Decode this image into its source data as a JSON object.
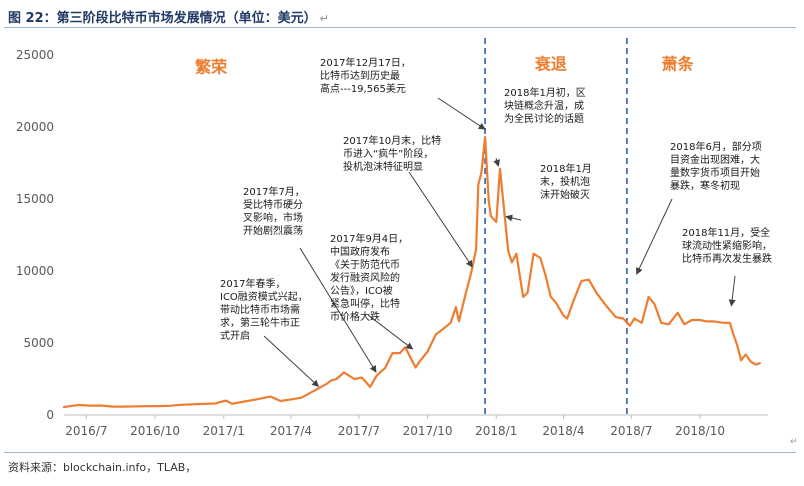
{
  "title": "图 22：第三阶段比特币市场发展情况（单位：美元）",
  "source": "资料来源：blockchain.info，TLAB，",
  "colors": {
    "line": "#ed7d31",
    "divider": "#2e5fa8",
    "phase": "#ed7d31",
    "arrow": "#404040"
  },
  "chart_data": {
    "type": "line",
    "title": "",
    "xlabel": "",
    "ylabel": "",
    "ylim": [
      0,
      25000
    ],
    "yticks": [
      0,
      5000,
      10000,
      15000,
      20000,
      25000
    ],
    "ytick_labels": [
      "0",
      "5000",
      "10000",
      "15000",
      "20000",
      "25000"
    ],
    "xlim": [
      "2016-06-01",
      "2018-12-31"
    ],
    "xticks": [
      "2016-07-01",
      "2016-10-01",
      "2017-01-01",
      "2017-04-01",
      "2017-07-01",
      "2017-10-01",
      "2018-01-01",
      "2018-04-01",
      "2018-07-01",
      "2018-10-01"
    ],
    "xtick_labels": [
      "2016/7",
      "2016/10",
      "2017/1",
      "2017/4",
      "2017/7",
      "2017/10",
      "2018/1",
      "2018/4",
      "2018/7",
      "2018/10"
    ],
    "grid": false,
    "dividers": [
      "2017-12-17",
      "2018-06-25"
    ],
    "phases": [
      {
        "label": "繁荣",
        "date": "2016-12-15",
        "value": 23800
      },
      {
        "label": "衰退",
        "date": "2018-03-15",
        "value": 24000
      },
      {
        "label": "萧条",
        "date": "2018-09-01",
        "value": 24000
      }
    ],
    "series": [
      {
        "x": [
          "2016-06-01",
          "2016-06-20",
          "2016-07-05",
          "2016-07-20",
          "2016-08-05",
          "2016-08-20",
          "2016-09-05",
          "2016-09-20",
          "2016-10-05",
          "2016-10-20",
          "2016-11-05",
          "2016-11-20",
          "2016-12-05",
          "2016-12-20",
          "2017-01-04",
          "2017-01-12",
          "2017-01-25",
          "2017-02-10",
          "2017-02-25",
          "2017-03-05",
          "2017-03-18",
          "2017-04-01",
          "2017-04-15",
          "2017-05-01",
          "2017-05-10",
          "2017-05-20",
          "2017-05-25",
          "2017-06-01",
          "2017-06-11",
          "2017-06-25",
          "2017-07-05",
          "2017-07-16",
          "2017-07-25",
          "2017-08-05",
          "2017-08-15",
          "2017-08-25",
          "2017-09-01",
          "2017-09-05",
          "2017-09-10",
          "2017-09-15",
          "2017-09-20",
          "2017-10-01",
          "2017-10-12",
          "2017-10-20",
          "2017-11-01",
          "2017-11-08",
          "2017-11-12",
          "2017-11-20",
          "2017-11-28",
          "2017-12-05",
          "2017-12-08",
          "2017-12-12",
          "2017-12-17",
          "2017-12-22",
          "2017-12-25",
          "2018-01-01",
          "2018-01-06",
          "2018-01-10",
          "2018-01-17",
          "2018-01-22",
          "2018-01-28",
          "2018-02-06",
          "2018-02-12",
          "2018-02-20",
          "2018-03-01",
          "2018-03-08",
          "2018-03-15",
          "2018-03-22",
          "2018-04-01",
          "2018-04-06",
          "2018-04-15",
          "2018-04-25",
          "2018-05-05",
          "2018-05-15",
          "2018-05-28",
          "2018-06-10",
          "2018-06-20",
          "2018-06-29",
          "2018-07-05",
          "2018-07-15",
          "2018-07-24",
          "2018-08-01",
          "2018-08-10",
          "2018-08-20",
          "2018-09-01",
          "2018-09-10",
          "2018-09-20",
          "2018-10-01",
          "2018-10-10",
          "2018-10-20",
          "2018-11-01",
          "2018-11-10",
          "2018-11-14",
          "2018-11-20",
          "2018-11-25",
          "2018-12-01",
          "2018-12-08",
          "2018-12-15",
          "2018-12-20"
        ],
        "values": [
          550,
          700,
          650,
          660,
          580,
          580,
          600,
          610,
          620,
          640,
          710,
          740,
          770,
          800,
          1000,
          780,
          900,
          1050,
          1200,
          1280,
          970,
          1080,
          1200,
          1650,
          1900,
          2200,
          2400,
          2500,
          2950,
          2500,
          2600,
          1950,
          2750,
          3250,
          4300,
          4300,
          4700,
          4300,
          3800,
          3300,
          3700,
          4400,
          5600,
          5900,
          6400,
          7500,
          6500,
          8200,
          9800,
          11500,
          16000,
          16800,
          19300,
          14800,
          13800,
          13400,
          17100,
          15000,
          11400,
          10600,
          11200,
          8200,
          8500,
          11200,
          10900,
          9700,
          8200,
          7800,
          6900,
          6700,
          8000,
          9300,
          9400,
          8500,
          7600,
          6800,
          6700,
          6200,
          6700,
          6400,
          8200,
          7700,
          6400,
          6300,
          7100,
          6300,
          6600,
          6600,
          6500,
          6500,
          6400,
          6400,
          5700,
          4800,
          3800,
          4200,
          3700,
          3500,
          3600
        ]
      }
    ],
    "annotations": [
      {
        "date": "2017-12-17",
        "value": 19565,
        "lines": [
          "2017年12月17日，",
          "比特币达到历史最",
          "高点---19,565美元"
        ]
      },
      {
        "date": "2018-01-04",
        "value": 17000,
        "lines": [
          "2018年1月初，区",
          "块链概念升温，成",
          "为全民讨论的话题"
        ]
      },
      {
        "date": "2017-11-30",
        "value": 10000,
        "lines": [
          "2017年10月末，比特",
          "币进入“疯牛”阶段，",
          "投机泡沫特征明显"
        ]
      },
      {
        "date": "2018-01-14",
        "value": 13500,
        "lines": [
          "2018年1月",
          "末，投机泡",
          "沫开始破灭"
        ]
      },
      {
        "date": "2017-07-24",
        "value": 2700,
        "lines": [
          "2017年7月，",
          "受比特币硬分",
          "叉影响，市场",
          "开始剧烈震荡"
        ]
      },
      {
        "date": "2017-09-11",
        "value": 4300,
        "lines": [
          "2017年9月4日，",
          "中国政府发布",
          "《关于防范代币",
          "发行融资风险的",
          "公告》，ICO被",
          "紧急叫停，比特",
          "币价格大跌"
        ]
      },
      {
        "date": "2017-05-08",
        "value": 1700,
        "lines": [
          "2017年春季，",
          "ICO融资模式兴起，",
          "带动比特币市场需",
          "求，第三轮牛市正",
          "式开启"
        ]
      },
      {
        "date": "2018-07-08",
        "value": 9500,
        "lines": [
          "2018年6月，部分项",
          "目资金出现困难，大",
          "量数字货币项目开始",
          "暴跌，寒冬初现"
        ]
      },
      {
        "date": "2018-11-12",
        "value": 7300,
        "lines": [
          "2018年11月，受全",
          "球流动性紧缩影响，",
          "比特币再次发生暴跌"
        ]
      }
    ]
  }
}
